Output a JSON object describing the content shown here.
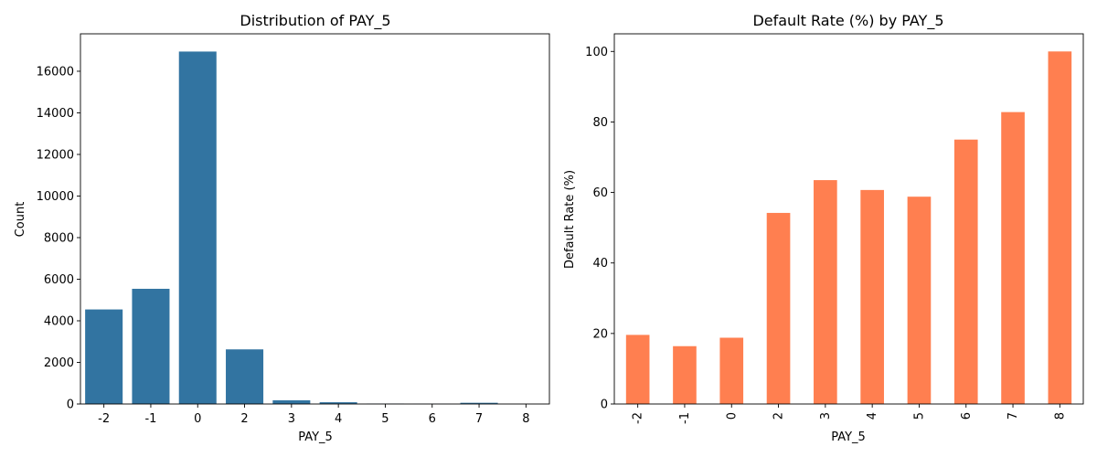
{
  "chart_data": [
    {
      "type": "bar",
      "title": "Distribution of PAY_5",
      "xlabel": "PAY_5",
      "ylabel": "Count",
      "categories": [
        "-2",
        "-1",
        "0",
        "2",
        "3",
        "4",
        "5",
        "6",
        "7",
        "8"
      ],
      "values": [
        4546,
        5539,
        16947,
        2626,
        178,
        84,
        17,
        4,
        58,
        1
      ],
      "ylim": [
        0,
        17800
      ],
      "yticks": [
        0,
        2000,
        4000,
        6000,
        8000,
        10000,
        12000,
        14000,
        16000
      ],
      "color": "#3274a1",
      "grid": false
    },
    {
      "type": "bar",
      "title": "Default Rate (%) by PAY_5",
      "xlabel": "PAY_5",
      "ylabel": "Default Rate (%)",
      "categories": [
        "-2",
        "-1",
        "0",
        "2",
        "3",
        "4",
        "5",
        "6",
        "7",
        "8"
      ],
      "values": [
        19.6,
        16.4,
        18.8,
        54.2,
        63.5,
        60.7,
        58.8,
        75.0,
        82.8,
        100.0
      ],
      "ylim": [
        0,
        105
      ],
      "yticks": [
        0,
        20,
        40,
        60,
        80,
        100
      ],
      "xtick_rotation": "vertical",
      "color": "#ff7f50",
      "grid": false
    }
  ]
}
